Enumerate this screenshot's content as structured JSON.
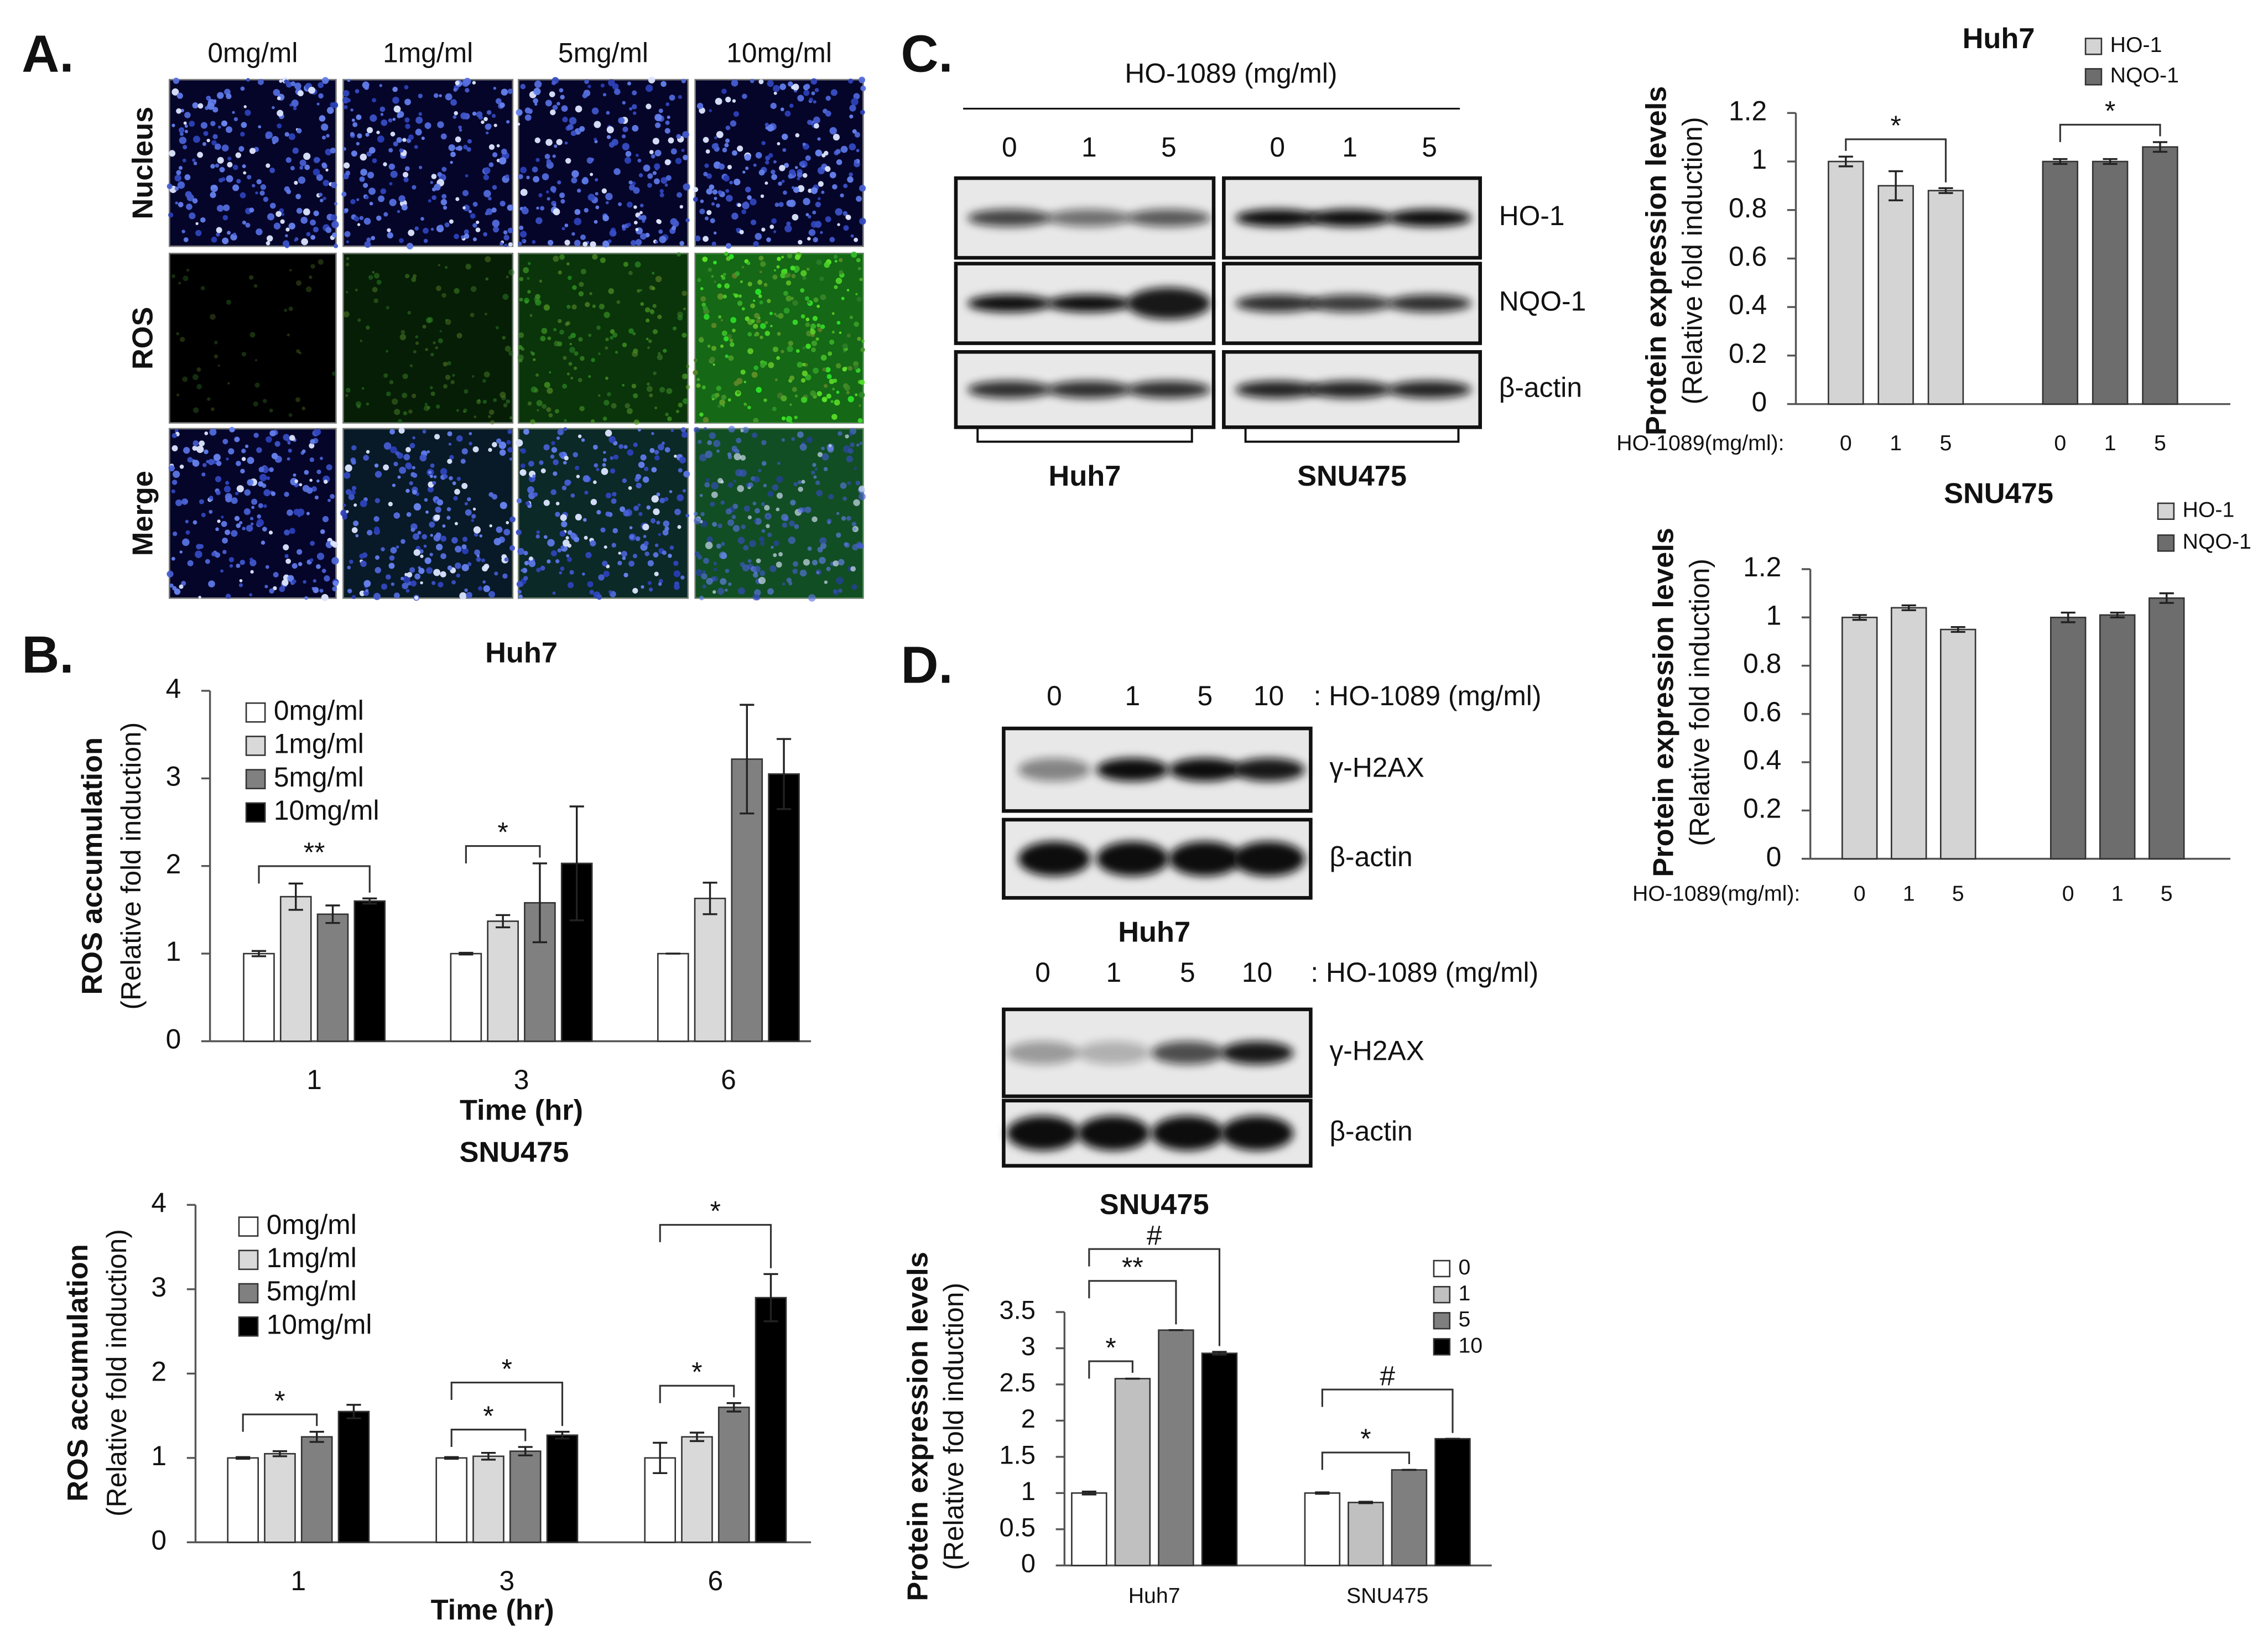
{
  "panel_labels": [
    "A.",
    "B.",
    "C.",
    "D."
  ],
  "panel_a": {
    "columns": [
      "0mg/ml",
      "1mg/ml",
      "5mg/ml",
      "10mg/ml"
    ],
    "rows": [
      "Nucleus",
      "ROS",
      "Merge"
    ]
  },
  "blot_c": {
    "title": "HO-1089 (mg/ml)",
    "lanes": [
      "0",
      "1",
      "5"
    ],
    "proteins": [
      "HO-1",
      "NQO-1",
      "β-actin"
    ],
    "cell_lines": [
      "Huh7",
      "SNU475"
    ]
  },
  "blot_d": {
    "treatment": ": HO-1089 (mg/ml)",
    "lanes": [
      "0",
      "1",
      "5",
      "10"
    ],
    "proteins": [
      "γ-H2AX",
      "β-actin"
    ],
    "cell_lines": [
      "Huh7",
      "SNU475"
    ]
  },
  "chart_data": [
    {
      "type": "bar",
      "title": "Huh7",
      "y_label": "ROS accumulation",
      "y_sublabel": "(Relative fold induction)",
      "x_label": "Time (hr)",
      "categories": [
        "1",
        "3",
        "6"
      ],
      "series": [
        {
          "name": "0mg/ml",
          "color": "#ffffff",
          "values": [
            1,
            1,
            1
          ],
          "errors": [
            0.03,
            0.01,
            0
          ]
        },
        {
          "name": "1mg/ml",
          "color": "#d9d9d9",
          "values": [
            1.65,
            1.37,
            1.63
          ],
          "errors": [
            0.15,
            0.07,
            0.18
          ]
        },
        {
          "name": "5mg/ml",
          "color": "#808080",
          "values": [
            1.45,
            1.58,
            3.22
          ],
          "errors": [
            0.1,
            0.45,
            0.62
          ]
        },
        {
          "name": "10mg/ml",
          "color": "#000000",
          "values": [
            1.6,
            2.03,
            3.05
          ],
          "errors": [
            0.03,
            0.65,
            0.4
          ]
        }
      ],
      "ylim": [
        0,
        4
      ],
      "yticks": [
        0,
        1,
        2,
        3,
        4
      ],
      "annotations": [
        {
          "text": "**",
          "group": 0,
          "from": 0,
          "to": 3
        },
        {
          "text": "*",
          "group": 1,
          "from": 0,
          "to": 2
        }
      ]
    },
    {
      "type": "bar",
      "title": "SNU475",
      "y_label": "ROS accumulation",
      "y_sublabel": "(Relative fold induction)",
      "x_label": "Time (hr)",
      "categories": [
        "1",
        "3",
        "6"
      ],
      "series": [
        {
          "name": "0mg/ml",
          "color": "#ffffff",
          "values": [
            1,
            1,
            1
          ],
          "errors": [
            0.01,
            0.01,
            0.18
          ]
        },
        {
          "name": "1mg/ml",
          "color": "#d9d9d9",
          "values": [
            1.05,
            1.02,
            1.25
          ],
          "errors": [
            0.03,
            0.04,
            0.05
          ]
        },
        {
          "name": "5mg/ml",
          "color": "#808080",
          "values": [
            1.25,
            1.08,
            1.6
          ],
          "errors": [
            0.06,
            0.05,
            0.05
          ]
        },
        {
          "name": "10mg/ml",
          "color": "#000000",
          "values": [
            1.55,
            1.27,
            2.9
          ],
          "errors": [
            0.08,
            0.04,
            0.28
          ]
        }
      ],
      "ylim": [
        0,
        4
      ],
      "yticks": [
        0,
        1,
        2,
        3,
        4
      ],
      "annotations": [
        {
          "text": "*",
          "group": 0,
          "from": 0,
          "to": 2
        },
        {
          "text": "*",
          "group": 1,
          "from": 0,
          "to": 2
        },
        {
          "text": "*",
          "group": 1,
          "from": 0,
          "to": 3
        },
        {
          "text": "*",
          "group": 2,
          "from": 0,
          "to": 2
        },
        {
          "text": "*",
          "group": 2,
          "from": 0,
          "to": 3
        }
      ]
    },
    {
      "type": "bar",
      "title": "Huh7",
      "y_label": "Protein expression levels",
      "y_sublabel": "(Relative fold induction)",
      "x_label": "HO-1089(mg/ml):",
      "categories": [
        "0",
        "1",
        "5"
      ],
      "series": [
        {
          "name": "HO-1",
          "color": "#d4d4d4",
          "values": [
            1,
            0.9,
            0.88
          ],
          "errors": [
            0.02,
            0.06,
            0.01
          ]
        },
        {
          "name": "NQO-1",
          "color": "#6d6d6d",
          "values": [
            1,
            1,
            1.06
          ],
          "errors": [
            0.01,
            0.01,
            0.02
          ]
        }
      ],
      "ylim": [
        0,
        1.2
      ],
      "yticks": [
        0,
        0.2,
        0.4,
        0.6,
        0.8,
        1,
        1.2
      ],
      "annotations": [
        {
          "text": "*",
          "group": 0,
          "from": 0,
          "to": 2
        },
        {
          "text": "*",
          "group": 1,
          "from": 0,
          "to": 2
        }
      ]
    },
    {
      "type": "bar",
      "title": "SNU475",
      "y_label": "Protein expression levels",
      "y_sublabel": "(Relative fold induction)",
      "x_label": "HO-1089(mg/ml):",
      "categories": [
        "0",
        "1",
        "5"
      ],
      "series": [
        {
          "name": "HO-1",
          "color": "#d4d4d4",
          "values": [
            1,
            1.04,
            0.95
          ],
          "errors": [
            0.01,
            0.01,
            0.01
          ]
        },
        {
          "name": "NQO-1",
          "color": "#6d6d6d",
          "values": [
            1,
            1.01,
            1.08
          ],
          "errors": [
            0.02,
            0.01,
            0.02
          ]
        }
      ],
      "ylim": [
        0,
        1.2
      ],
      "yticks": [
        0,
        0.2,
        0.4,
        0.6,
        0.8,
        1,
        1.2
      ],
      "annotations": []
    },
    {
      "type": "bar",
      "y_label": "Protein expression levels",
      "y_sublabel": "(Relative fold induction)",
      "categories": [
        "Huh7",
        "SNU475"
      ],
      "series": [
        {
          "name": "0",
          "color": "#ffffff",
          "values": [
            1,
            1
          ],
          "errors": [
            0.02,
            0.01
          ]
        },
        {
          "name": "1",
          "color": "#c0c0c0",
          "values": [
            2.58,
            0.87
          ],
          "errors": [
            0,
            0.01
          ]
        },
        {
          "name": "5",
          "color": "#7f7f7f",
          "values": [
            3.25,
            1.32
          ],
          "errors": [
            0,
            0
          ]
        },
        {
          "name": "10",
          "color": "#000000",
          "values": [
            2.93,
            1.75
          ],
          "errors": [
            0.02,
            0
          ]
        }
      ],
      "ylim": [
        0,
        3.5
      ],
      "yticks": [
        0,
        0.5,
        1,
        1.5,
        2,
        2.5,
        3,
        3.5
      ],
      "annotations": [
        {
          "text": "*",
          "group": 0,
          "from": 0,
          "to": 1
        },
        {
          "text": "**",
          "group": 0,
          "from": 0,
          "to": 2
        },
        {
          "text": "#",
          "group": 0,
          "from": 0,
          "to": 3
        },
        {
          "text": "*",
          "group": 1,
          "from": 0,
          "to": 2
        },
        {
          "text": "#",
          "group": 1,
          "from": 0,
          "to": 3
        }
      ]
    }
  ]
}
